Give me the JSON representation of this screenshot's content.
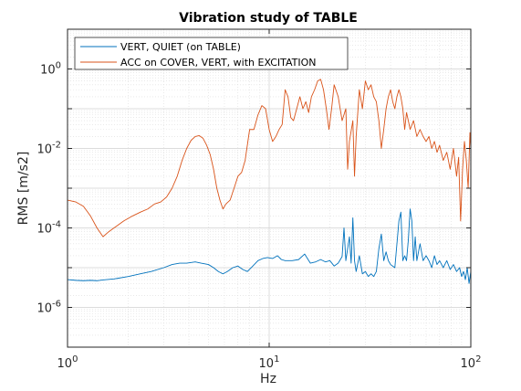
{
  "chart_data": {
    "type": "line",
    "title": "Vibration study of TABLE",
    "xlabel": "Hz",
    "ylabel": "RMS [m/s2]",
    "xscale": "log",
    "yscale": "log",
    "xlim": [
      1,
      100
    ],
    "ylim": [
      1e-07,
      10.0
    ],
    "grid": true,
    "legend_position": "top-left",
    "x_ticks": [
      {
        "value": 1,
        "base": "10",
        "exp": "0"
      },
      {
        "value": 10,
        "base": "10",
        "exp": "1"
      },
      {
        "value": 100,
        "base": "10",
        "exp": "2"
      }
    ],
    "y_ticks": [
      {
        "value": 1e-06,
        "base": "10",
        "exp": "-6"
      },
      {
        "value": 0.0001,
        "base": "10",
        "exp": "-4"
      },
      {
        "value": 0.01,
        "base": "10",
        "exp": "-2"
      },
      {
        "value": 1,
        "base": "10",
        "exp": "0"
      }
    ],
    "series": [
      {
        "name": "VERT, QUIET (on TABLE)",
        "color": "#0072BD",
        "points": [
          [
            1.0,
            5e-06
          ],
          [
            1.1,
            4.8e-06
          ],
          [
            1.2,
            4.7e-06
          ],
          [
            1.3,
            4.8e-06
          ],
          [
            1.4,
            4.7e-06
          ],
          [
            1.5,
            4.9e-06
          ],
          [
            1.7,
            5.2e-06
          ],
          [
            2.0,
            6e-06
          ],
          [
            2.3,
            7e-06
          ],
          [
            2.6,
            8e-06
          ],
          [
            3.0,
            1e-05
          ],
          [
            3.3,
            1.2e-05
          ],
          [
            3.6,
            1.3e-05
          ],
          [
            3.9,
            1.3e-05
          ],
          [
            4.3,
            1.4e-05
          ],
          [
            4.6,
            1.3e-05
          ],
          [
            5.0,
            1.2e-05
          ],
          [
            5.3,
            1e-05
          ],
          [
            5.6,
            8e-06
          ],
          [
            5.9,
            7e-06
          ],
          [
            6.2,
            8e-06
          ],
          [
            6.6,
            1e-05
          ],
          [
            7.0,
            1.1e-05
          ],
          [
            7.4,
            9e-06
          ],
          [
            7.8,
            8e-06
          ],
          [
            8.3,
            1.1e-05
          ],
          [
            8.8,
            1.5e-05
          ],
          [
            9.3,
            1.7e-05
          ],
          [
            9.8,
            1.8e-05
          ],
          [
            10.4,
            1.7e-05
          ],
          [
            11,
            2e-05
          ],
          [
            11.5,
            1.6e-05
          ],
          [
            12,
            1.5e-05
          ],
          [
            13,
            1.5e-05
          ],
          [
            14,
            1.6e-05
          ],
          [
            15,
            2.2e-05
          ],
          [
            16,
            1.3e-05
          ],
          [
            17,
            1.4e-05
          ],
          [
            18,
            1.6e-05
          ],
          [
            19,
            1.4e-05
          ],
          [
            20,
            1.5e-05
          ],
          [
            21,
            1.1e-05
          ],
          [
            22,
            1.3e-05
          ],
          [
            23,
            1.9e-05
          ],
          [
            23.5,
            0.0001
          ],
          [
            24,
            1.5e-05
          ],
          [
            25,
            6e-05
          ],
          [
            25.5,
            1.3e-05
          ],
          [
            26,
            0.00018
          ],
          [
            26.5,
            1.5e-05
          ],
          [
            27,
            8e-06
          ],
          [
            28,
            2e-05
          ],
          [
            29,
            7e-06
          ],
          [
            30,
            8e-06
          ],
          [
            31,
            6e-06
          ],
          [
            32,
            7e-06
          ],
          [
            33,
            6e-06
          ],
          [
            34,
            8e-06
          ],
          [
            35,
            3e-05
          ],
          [
            36,
            7e-05
          ],
          [
            37,
            1.5e-05
          ],
          [
            38,
            2.5e-05
          ],
          [
            39,
            1.5e-05
          ],
          [
            40,
            1.2e-05
          ],
          [
            42,
            1e-05
          ],
          [
            44,
            0.00015
          ],
          [
            45,
            0.00025
          ],
          [
            46,
            1.5e-05
          ],
          [
            47,
            2e-05
          ],
          [
            48,
            1.5e-05
          ],
          [
            49,
            5e-05
          ],
          [
            50,
            0.0003
          ],
          [
            51,
            0.00015
          ],
          [
            52,
            1.5e-05
          ],
          [
            53,
            6e-05
          ],
          [
            54,
            1.5e-05
          ],
          [
            56,
            4e-05
          ],
          [
            58,
            1.5e-05
          ],
          [
            60,
            2e-05
          ],
          [
            62,
            1.5e-05
          ],
          [
            64,
            1e-05
          ],
          [
            66,
            2e-05
          ],
          [
            68,
            1.2e-05
          ],
          [
            70,
            1.5e-05
          ],
          [
            73,
            1e-05
          ],
          [
            76,
            1.5e-05
          ],
          [
            79,
            9e-06
          ],
          [
            82,
            1.2e-05
          ],
          [
            85,
            8e-06
          ],
          [
            88,
            1e-05
          ],
          [
            90,
            6e-06
          ],
          [
            92,
            8e-06
          ],
          [
            94,
            5e-06
          ],
          [
            96,
            1e-05
          ],
          [
            98,
            4e-06
          ],
          [
            100,
            8e-06
          ]
        ]
      },
      {
        "name": "ACC on COVER, VERT, with EXCITATION",
        "color": "#D95319",
        "points": [
          [
            1.0,
            0.0005
          ],
          [
            1.1,
            0.00045
          ],
          [
            1.2,
            0.00035
          ],
          [
            1.3,
            0.0002
          ],
          [
            1.4,
            0.0001
          ],
          [
            1.5,
            6e-05
          ],
          [
            1.6,
            8e-05
          ],
          [
            1.7,
            0.0001
          ],
          [
            1.9,
            0.00015
          ],
          [
            2.1,
            0.0002
          ],
          [
            2.3,
            0.00025
          ],
          [
            2.5,
            0.0003
          ],
          [
            2.7,
            0.0004
          ],
          [
            2.9,
            0.00045
          ],
          [
            3.1,
            0.0006
          ],
          [
            3.3,
            0.001
          ],
          [
            3.5,
            0.002
          ],
          [
            3.7,
            0.005
          ],
          [
            3.9,
            0.01
          ],
          [
            4.1,
            0.016
          ],
          [
            4.3,
            0.02
          ],
          [
            4.5,
            0.021
          ],
          [
            4.7,
            0.018
          ],
          [
            4.9,
            0.012
          ],
          [
            5.1,
            0.007
          ],
          [
            5.3,
            0.003
          ],
          [
            5.5,
            0.001
          ],
          [
            5.7,
            0.0005
          ],
          [
            5.9,
            0.0003
          ],
          [
            6.1,
            0.0004
          ],
          [
            6.4,
            0.0005
          ],
          [
            6.7,
            0.001
          ],
          [
            7.0,
            0.002
          ],
          [
            7.3,
            0.0025
          ],
          [
            7.6,
            0.005
          ],
          [
            8.0,
            0.03
          ],
          [
            8.4,
            0.03
          ],
          [
            8.8,
            0.07
          ],
          [
            9.2,
            0.12
          ],
          [
            9.6,
            0.1
          ],
          [
            10.0,
            0.03
          ],
          [
            10.4,
            0.015
          ],
          [
            10.8,
            0.02
          ],
          [
            11.2,
            0.03
          ],
          [
            11.6,
            0.04
          ],
          [
            12.0,
            0.3
          ],
          [
            12.4,
            0.2
          ],
          [
            12.8,
            0.06
          ],
          [
            13.2,
            0.05
          ],
          [
            13.7,
            0.1
          ],
          [
            14.2,
            0.2
          ],
          [
            14.7,
            0.1
          ],
          [
            15.2,
            0.15
          ],
          [
            15.7,
            0.08
          ],
          [
            16.2,
            0.2
          ],
          [
            16.8,
            0.3
          ],
          [
            17.4,
            0.5
          ],
          [
            18.0,
            0.55
          ],
          [
            18.6,
            0.3
          ],
          [
            19.2,
            0.1
          ],
          [
            19.8,
            0.03
          ],
          [
            20.4,
            0.1
          ],
          [
            21,
            0.4
          ],
          [
            22,
            0.2
          ],
          [
            23,
            0.05
          ],
          [
            24,
            0.1
          ],
          [
            24.5,
            0.003
          ],
          [
            25,
            0.015
          ],
          [
            26,
            0.05
          ],
          [
            26.5,
            0.002
          ],
          [
            27,
            0.02
          ],
          [
            28,
            0.3
          ],
          [
            29,
            0.1
          ],
          [
            30,
            0.5
          ],
          [
            31,
            0.3
          ],
          [
            32,
            0.4
          ],
          [
            33,
            0.2
          ],
          [
            34,
            0.15
          ],
          [
            35,
            0.05
          ],
          [
            36,
            0.01
          ],
          [
            37,
            0.03
          ],
          [
            38,
            0.1
          ],
          [
            39,
            0.2
          ],
          [
            40,
            0.3
          ],
          [
            41,
            0.15
          ],
          [
            42,
            0.1
          ],
          [
            43,
            0.2
          ],
          [
            44,
            0.3
          ],
          [
            45,
            0.2
          ],
          [
            46,
            0.1
          ],
          [
            47,
            0.03
          ],
          [
            48,
            0.08
          ],
          [
            49,
            0.05
          ],
          [
            50,
            0.03
          ],
          [
            52,
            0.05
          ],
          [
            54,
            0.02
          ],
          [
            56,
            0.03
          ],
          [
            58,
            0.02
          ],
          [
            60,
            0.015
          ],
          [
            62,
            0.02
          ],
          [
            64,
            0.01
          ],
          [
            66,
            0.015
          ],
          [
            68,
            0.008
          ],
          [
            70,
            0.012
          ],
          [
            73,
            0.005
          ],
          [
            76,
            0.008
          ],
          [
            79,
            0.003
          ],
          [
            82,
            0.01
          ],
          [
            85,
            0.002
          ],
          [
            87,
            0.006
          ],
          [
            89,
            0.00015
          ],
          [
            91,
            0.003
          ],
          [
            93,
            0.015
          ],
          [
            95,
            0.005
          ],
          [
            97,
            0.001
          ],
          [
            99,
            0.025
          ],
          [
            100,
            0.01
          ]
        ]
      }
    ]
  }
}
